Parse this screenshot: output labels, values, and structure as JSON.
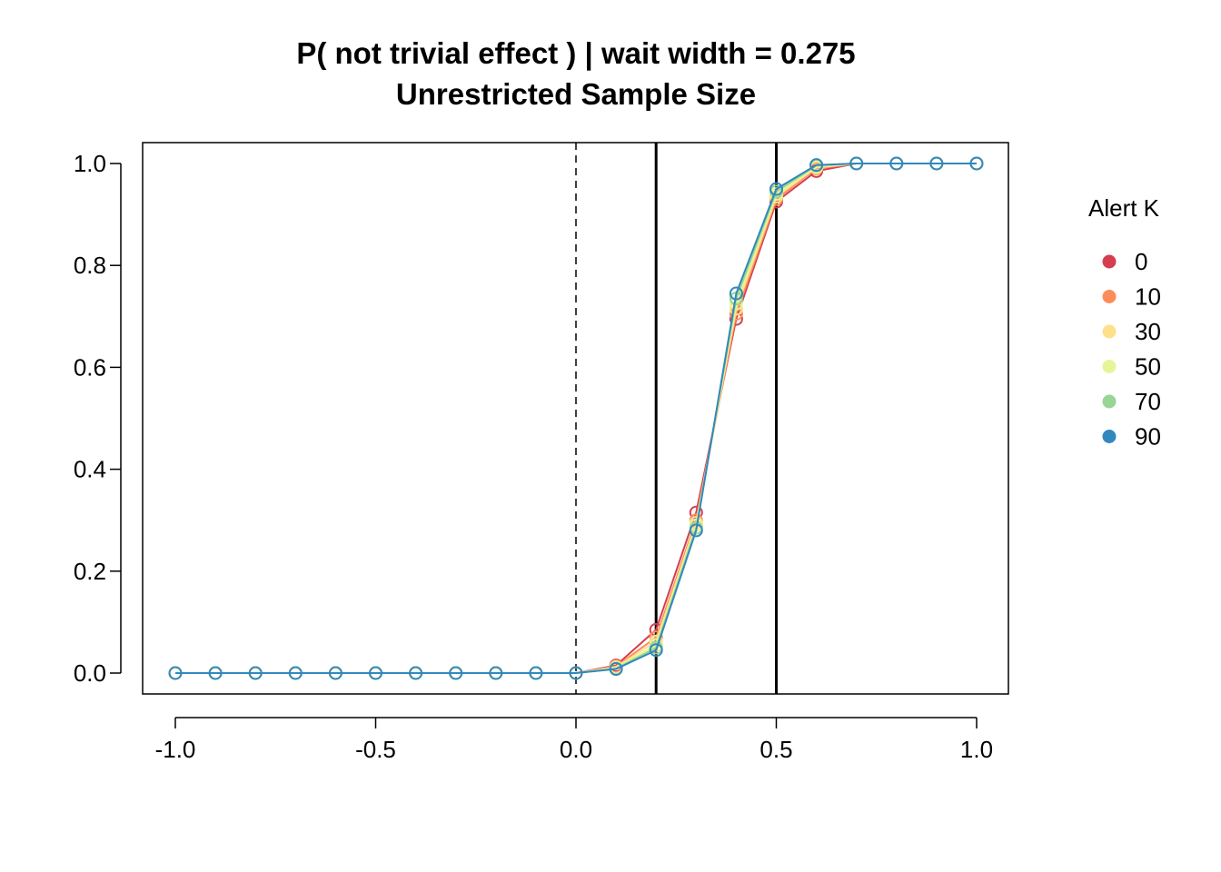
{
  "chart_data": {
    "type": "line",
    "title": "P( not trivial effect ) | wait width = 0.275",
    "subtitle": "Unrestricted Sample Size",
    "xlabel": "",
    "ylabel": "",
    "xlim": [
      -1.0,
      1.0
    ],
    "ylim": [
      0.0,
      1.0
    ],
    "xticks": [
      "-1.0",
      "-0.5",
      "0.0",
      "0.5",
      "1.0"
    ],
    "yticks": [
      "0.0",
      "0.2",
      "0.4",
      "0.6",
      "0.8",
      "1.0"
    ],
    "grid": false,
    "reference_lines": [
      {
        "x": 0.0,
        "style": "dashed"
      },
      {
        "x": 0.2,
        "style": "solid"
      },
      {
        "x": 0.5,
        "style": "solid"
      }
    ],
    "legend": {
      "title": "Alert K",
      "position": "right"
    },
    "x": [
      -1.0,
      -0.9,
      -0.8,
      -0.7,
      -0.6,
      -0.5,
      -0.4,
      -0.3,
      -0.2,
      -0.1,
      0.0,
      0.1,
      0.2,
      0.3,
      0.4,
      0.5,
      0.6,
      0.7,
      0.8,
      0.9,
      1.0
    ],
    "series": [
      {
        "name": "0",
        "color": "#d53e4f",
        "values": [
          0,
          0,
          0,
          0,
          0,
          0,
          0,
          0,
          0,
          0,
          0,
          0.015,
          0.085,
          0.315,
          0.695,
          0.925,
          0.985,
          1.0,
          1.0,
          1.0,
          1.0
        ]
      },
      {
        "name": "10",
        "color": "#fc8d59",
        "values": [
          0,
          0,
          0,
          0,
          0,
          0,
          0,
          0,
          0,
          0,
          0,
          0.013,
          0.07,
          0.3,
          0.705,
          0.93,
          0.99,
          1.0,
          1.0,
          1.0,
          1.0
        ]
      },
      {
        "name": "30",
        "color": "#fee08b",
        "values": [
          0,
          0,
          0,
          0,
          0,
          0,
          0,
          0,
          0,
          0,
          0,
          0.012,
          0.062,
          0.295,
          0.715,
          0.935,
          0.992,
          1.0,
          1.0,
          1.0,
          1.0
        ]
      },
      {
        "name": "50",
        "color": "#e6f598",
        "values": [
          0,
          0,
          0,
          0,
          0,
          0,
          0,
          0,
          0,
          0,
          0,
          0.01,
          0.055,
          0.29,
          0.725,
          0.94,
          0.994,
          1.0,
          1.0,
          1.0,
          1.0
        ]
      },
      {
        "name": "70",
        "color": "#99d594",
        "values": [
          0,
          0,
          0,
          0,
          0,
          0,
          0,
          0,
          0,
          0,
          0,
          0.009,
          0.05,
          0.285,
          0.735,
          0.945,
          0.996,
          1.0,
          1.0,
          1.0,
          1.0
        ]
      },
      {
        "name": "90",
        "color": "#3288bd",
        "values": [
          0,
          0,
          0,
          0,
          0,
          0,
          0,
          0,
          0,
          0,
          0,
          0.008,
          0.045,
          0.28,
          0.745,
          0.95,
          0.997,
          1.0,
          1.0,
          1.0,
          1.0
        ]
      }
    ]
  }
}
